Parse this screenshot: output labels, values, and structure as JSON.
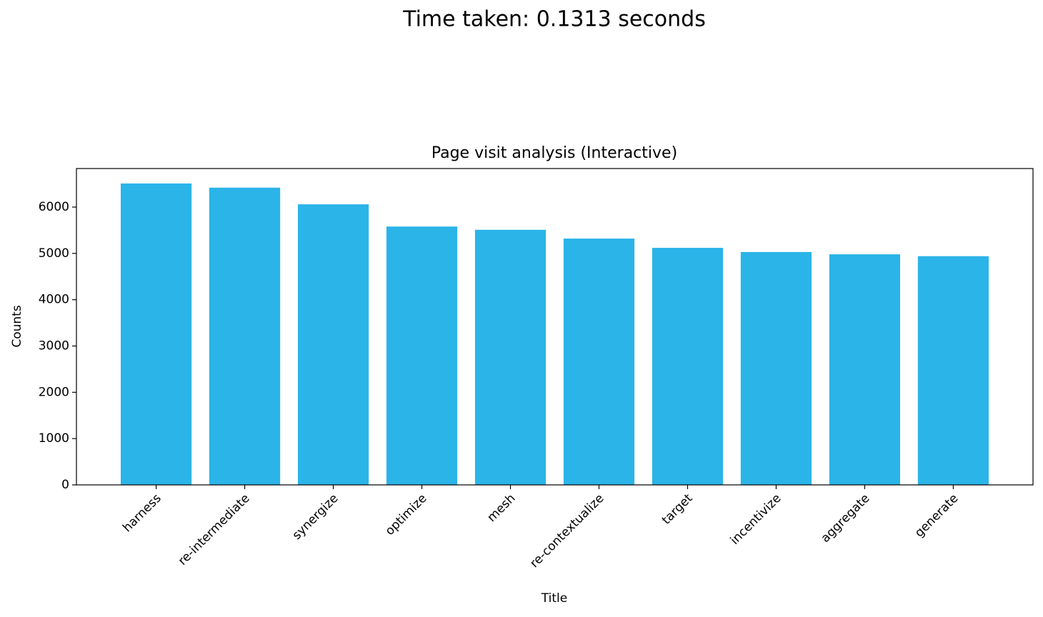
{
  "chart_data": {
    "type": "bar",
    "suptitle": "Time taken: 0.1313 seconds",
    "title": "Page visit analysis (Interactive)",
    "x_label": "Title",
    "y_label": "Counts",
    "categories": [
      "harness",
      "re-intermediate",
      "synergize",
      "optimize",
      "mesh",
      "re-contextualize",
      "target",
      "incentivize",
      "aggregate",
      "generate"
    ],
    "values": [
      6510,
      6420,
      6060,
      5580,
      5510,
      5320,
      5120,
      5030,
      4980,
      4940
    ],
    "color": "#2bb4e8",
    "ylim": [
      0,
      6833
    ],
    "yticks": [
      0,
      1000,
      2000,
      3000,
      4000,
      5000,
      6000
    ],
    "grid": false
  }
}
